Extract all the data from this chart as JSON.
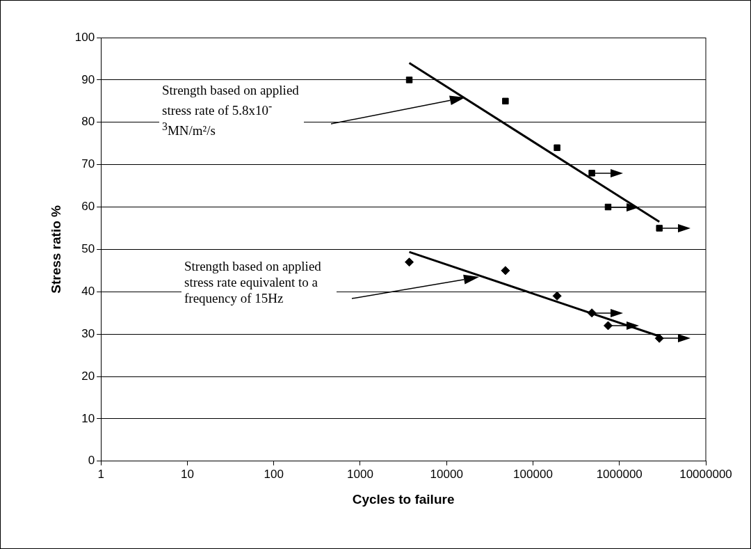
{
  "chart_data": {
    "type": "scatter",
    "xlabel": "Cycles to failure",
    "ylabel": "Stress ratio %",
    "log": "x",
    "grid": "y",
    "legend": false,
    "xlim": [
      1,
      10000000
    ],
    "xticks": [
      1,
      10,
      100,
      1000,
      10000,
      100000,
      1000000,
      10000000
    ],
    "ylim": [
      0,
      100
    ],
    "yticks": [
      0,
      10,
      20,
      30,
      40,
      50,
      60,
      70,
      80,
      90,
      100
    ],
    "series": [
      {
        "type": "scatter",
        "marker": "square",
        "color": "#000000",
        "x": [
          3700,
          48000,
          190000,
          480000,
          740000,
          2900000
        ],
        "values": [
          90,
          85,
          74,
          68,
          60,
          55
        ]
      },
      {
        "type": "scatter",
        "marker": "diamond",
        "color": "#000000",
        "x": [
          3700,
          48000,
          190000,
          480000,
          740000,
          2900000
        ],
        "values": [
          47,
          45,
          39,
          35,
          32,
          29
        ]
      },
      {
        "type": "line",
        "marker": "none",
        "color": "#000000",
        "x": [
          3700,
          2900000
        ],
        "values": [
          94,
          56.5
        ]
      },
      {
        "type": "line",
        "marker": "none",
        "color": "#000000",
        "x": [
          3700,
          2900000
        ],
        "values": [
          49.4,
          29.5
        ]
      }
    ],
    "annotations": [
      "Strength based on applied stress rate of 5.8x10$^{-3}$MN/m²/s",
      "Strength based on applied stress rate equivalent to a frequency of 15Hz"
    ]
  }
}
